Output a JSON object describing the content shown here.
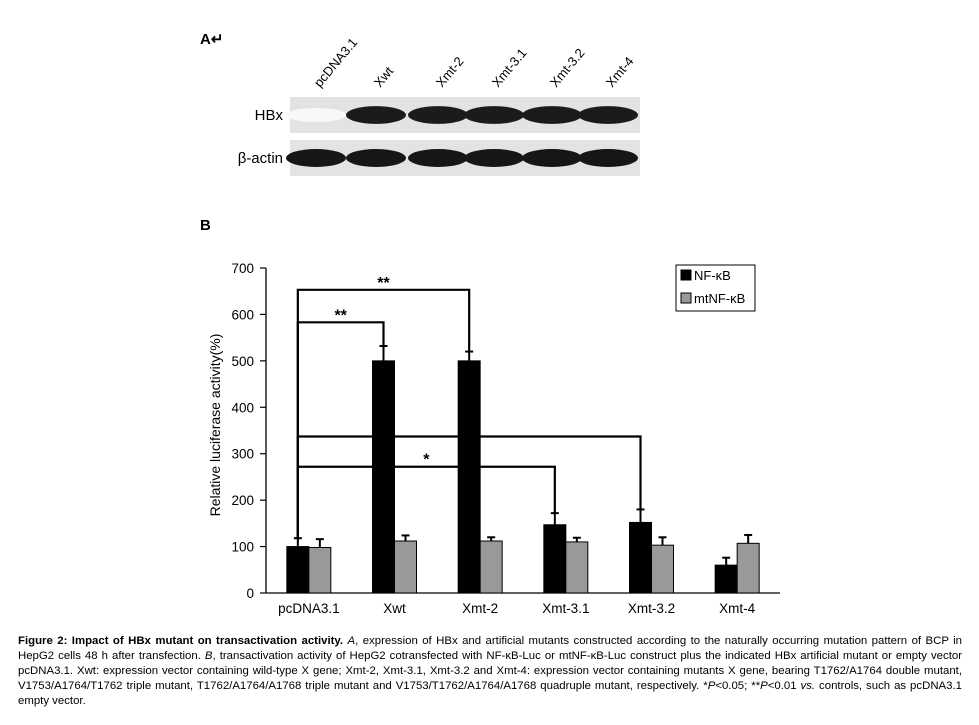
{
  "panel_a": {
    "label": "A↵",
    "lanes": [
      "pcDNA3.1",
      "Xwt",
      "Xmt-2",
      "Xmt-3.1",
      "Xmt-3.2",
      "Xmt-4"
    ],
    "rows": [
      {
        "label": "HBx",
        "band_intensity": [
          0.03,
          0.95,
          0.95,
          0.95,
          0.95,
          0.95
        ]
      },
      {
        "label": "β-actin",
        "band_intensity": [
          0.97,
          0.97,
          0.97,
          0.97,
          0.97,
          0.97
        ]
      }
    ]
  },
  "chart_data": {
    "type": "bar",
    "panel_label": "B",
    "categories": [
      "pcDNA3.1",
      "Xwt",
      "Xmt-2",
      "Xmt-3.1",
      "Xmt-3.2",
      "Xmt-4"
    ],
    "series": [
      {
        "name": "NF-κB",
        "color": "#000000",
        "values": [
          100,
          500,
          500,
          147,
          152,
          60
        ],
        "errors": [
          18,
          32,
          20,
          25,
          28,
          16
        ]
      },
      {
        "name": "mtNF-κB",
        "color": "#999999",
        "values": [
          98,
          112,
          112,
          110,
          103,
          107
        ],
        "errors": [
          18,
          12,
          8,
          9,
          17,
          18
        ]
      }
    ],
    "xlabel": "",
    "ylabel": "Relative luciferase activity(%)",
    "ylim": [
      0,
      700
    ],
    "yticks": [
      0,
      100,
      200,
      300,
      400,
      500,
      600,
      700
    ],
    "grid": false,
    "legend_position": "top-right",
    "significance": [
      {
        "from": "pcDNA3.1",
        "to": "Xmt-2",
        "label": "**"
      },
      {
        "from": "pcDNA3.1",
        "to": "Xwt",
        "label": "**"
      },
      {
        "from": "pcDNA3.1",
        "to": "Xmt-3.2",
        "label": "*"
      },
      {
        "from": "pcDNA3.1",
        "to": "Xmt-3.1",
        "label": "*"
      }
    ]
  },
  "caption": {
    "title": "Figure 2: Impact of HBx mutant on transactivation activity.",
    "p1": " ",
    "i_a": "A",
    "p2": ", expression of HBx and artificial mutants constructed according to the naturally occurring mutation pattern of BCP in HepG2 cells 48 h after transfection. ",
    "i_b": "B",
    "p3": ", transactivation activity of HepG2 cotransfected with NF-κB-Luc or mtNF-κB-Luc construct plus the indicated HBx artificial mutant or empty vector pcDNA3.1. Xwt: expression vector containing wild-type X gene; Xmt-2, Xmt-3.1, Xmt-3.2 and Xmt-4: expression vector containing mutants X gene, bearing T1762/A1764 double mutant, V1753/A1764/T1762 triple mutant, T1762/A1764/A1768 triple mutant and V1753/T1762/A1764/A1768 quadruple mutant, respectively. *",
    "i_p1": "P",
    "p4": "<0.05; **",
    "i_p2": "P",
    "p5": "<0.01 ",
    "i_vs": "vs.",
    "p6": " controls, such as pcDNA3.1 empty vector."
  }
}
